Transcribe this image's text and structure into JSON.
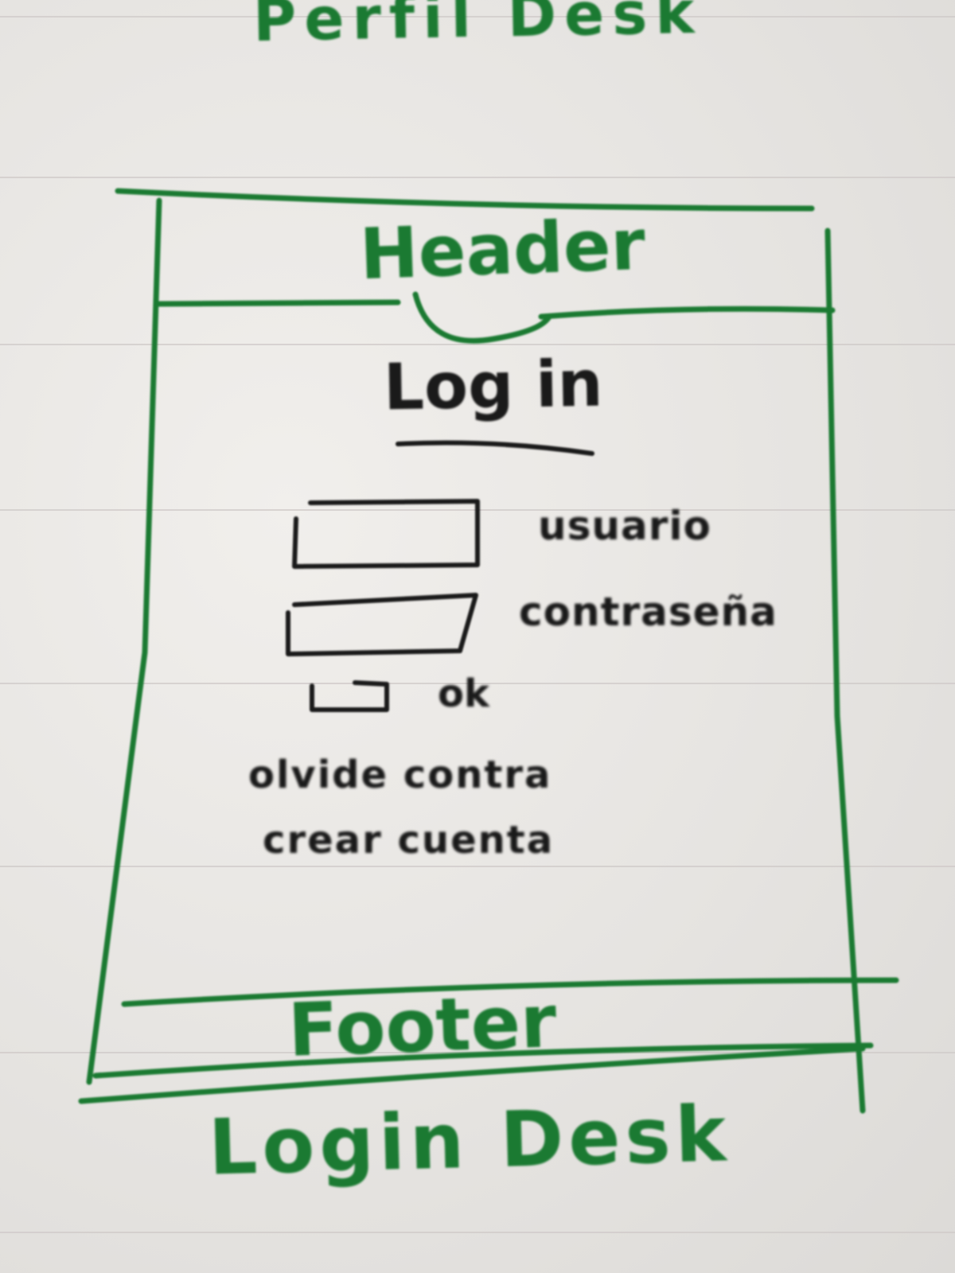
{
  "page": {
    "caption_top": "Perfil Desk",
    "caption_bottom": "Login Desk"
  },
  "wireframe": {
    "header": {
      "label": "Header"
    },
    "title": "Log in",
    "fields": [
      {
        "label": "usuario"
      },
      {
        "label": "contraseña"
      }
    ],
    "checkbox": {
      "label": "ok"
    },
    "links": [
      {
        "label": "olvide contra"
      },
      {
        "label": "crear cuenta"
      }
    ],
    "footer": {
      "label": "Footer"
    }
  },
  "colors": {
    "green_ink": "#1b7a32",
    "black_ink": "#1a1a1a",
    "paper": "#e9e7e4"
  }
}
